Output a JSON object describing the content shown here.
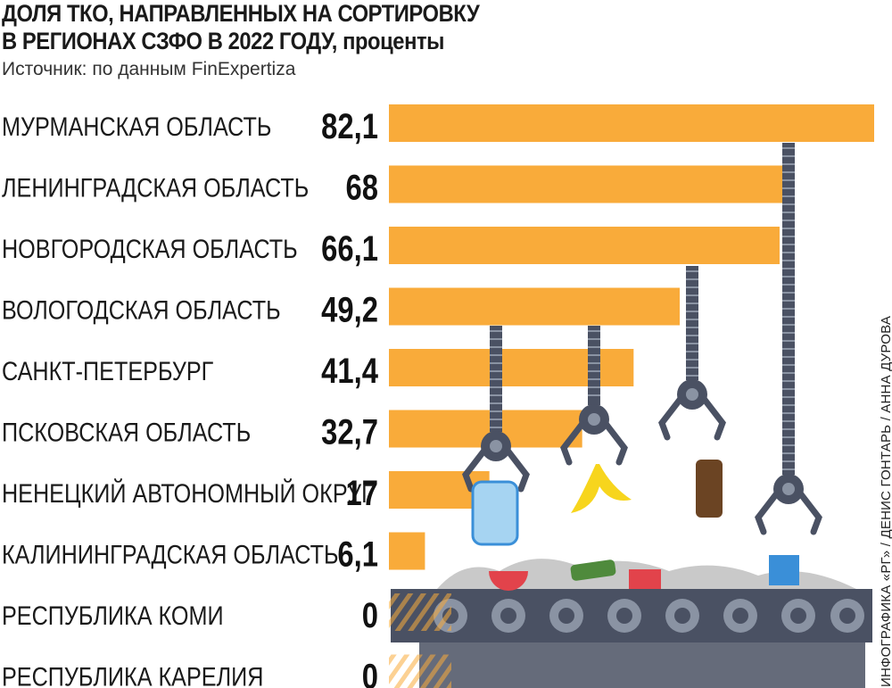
{
  "header": {
    "title_line1": "ДОЛЯ ТКО, НАПРАВЛЕННЫХ НА СОРТИРОВКУ",
    "title_line2": "В РЕГИОНАХ СЗФО В 2022 ГОДУ,",
    "title_unit": "проценты",
    "source": "Источник: по данным FinExpertiza"
  },
  "credit": "ИНФОГРАФИКА «РГ» / ДЕНИС ГОНТАРЬ / АННА ДУРОВА",
  "colors": {
    "bar": "#f9ab3a",
    "machine": "#4a5163",
    "roller": "#8a93a3"
  },
  "chart_data": {
    "type": "bar",
    "orientation": "horizontal",
    "categories": [
      "МУРМАНСКАЯ ОБЛАСТЬ",
      "ЛЕНИНГРАДСКАЯ ОБЛАСТЬ",
      "НОВГОРОДСКАЯ ОБЛАСТЬ",
      "ВОЛОГОДСКАЯ ОБЛАСТЬ",
      "САНКТ-ПЕТЕРБУРГ",
      "ПСКОВСКАЯ ОБЛАСТЬ",
      "НЕНЕЦКИЙ АВТОНОМНЫЙ ОКРУГ",
      "КАЛИНИНГРАДСКАЯ ОБЛАСТЬ",
      "РЕСПУБЛИКА КОМИ",
      "РЕСПУБЛИКА КАРЕЛИЯ"
    ],
    "values": [
      82.1,
      68,
      66.1,
      49.2,
      41.4,
      32.7,
      17,
      6.1,
      0,
      0
    ],
    "value_labels": [
      "82,1",
      "68",
      "66,1",
      "49,2",
      "41,4",
      "32,7",
      "17",
      "6,1",
      "0",
      "0"
    ],
    "xlim": [
      0,
      82.1
    ],
    "grid": false
  }
}
